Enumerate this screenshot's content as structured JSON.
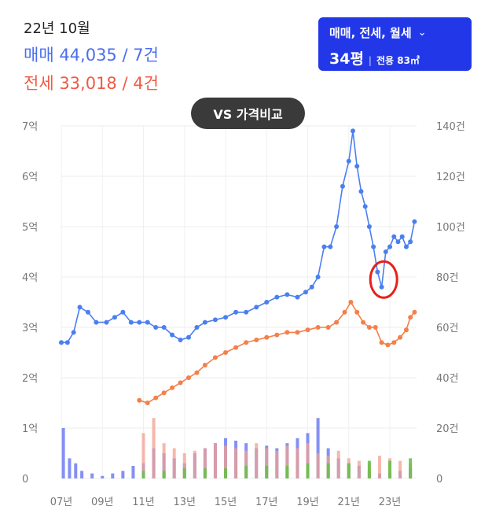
{
  "header": {
    "date": "22년 10월",
    "sale_line": "매매 44,035 / 7건",
    "jeonse_line": "전세 33,018 / 4건"
  },
  "filter": {
    "types": "매매, 전세, 월세",
    "size_main": "34평",
    "size_sub": "전용 83㎡"
  },
  "vs_button": "VS 가격비교",
  "colors": {
    "sale": "#4a7ff0",
    "jeonse": "#f4804a",
    "volume_sale": "#6f7df2",
    "volume_jeonse": "#f2a090",
    "volume_rent": "#6cbf4a",
    "highlight": "#e8201a"
  },
  "chart_data": {
    "type": "line",
    "title": "",
    "x_range": [
      2007,
      2024.3
    ],
    "xtick_labels": [
      "07년",
      "09년",
      "11년",
      "13년",
      "15년",
      "17년",
      "19년",
      "21년",
      "23년"
    ],
    "y_left_range": [
      0,
      7
    ],
    "y_left_unit": "억",
    "y_left_ticks": [
      "0",
      "1억",
      "2억",
      "3억",
      "4억",
      "5억",
      "6억",
      "7억"
    ],
    "y_right_range": [
      0,
      140
    ],
    "y_right_ticks": [
      "0",
      "20건",
      "40건",
      "60건",
      "80건",
      "100건",
      "120건",
      "140건"
    ],
    "grid": true,
    "series": [
      {
        "name": "매매",
        "axis": "left",
        "x": [
          2007.0,
          2007.3,
          2007.6,
          2007.9,
          2008.3,
          2008.7,
          2009.2,
          2009.6,
          2010.0,
          2010.4,
          2010.8,
          2011.2,
          2011.6,
          2012.0,
          2012.4,
          2012.8,
          2013.2,
          2013.6,
          2014.0,
          2014.5,
          2015.0,
          2015.5,
          2016.0,
          2016.5,
          2017.0,
          2017.5,
          2018.0,
          2018.5,
          2018.9,
          2019.2,
          2019.5,
          2019.8,
          2020.1,
          2020.4,
          2020.7,
          2021.0,
          2021.2,
          2021.4,
          2021.6,
          2021.8,
          2022.0,
          2022.2,
          2022.4,
          2022.6,
          2022.8,
          2023.0,
          2023.2,
          2023.4,
          2023.6,
          2023.8,
          2024.0,
          2024.2
        ],
        "y": [
          2.7,
          2.7,
          2.9,
          3.4,
          3.3,
          3.1,
          3.1,
          3.2,
          3.3,
          3.1,
          3.1,
          3.1,
          3.0,
          3.0,
          2.85,
          2.75,
          2.8,
          3.0,
          3.1,
          3.15,
          3.2,
          3.3,
          3.3,
          3.4,
          3.5,
          3.6,
          3.65,
          3.6,
          3.7,
          3.8,
          4.0,
          4.6,
          4.6,
          5.0,
          5.8,
          6.3,
          6.9,
          6.2,
          5.7,
          5.4,
          5.0,
          4.6,
          4.1,
          3.8,
          4.5,
          4.6,
          4.8,
          4.7,
          4.8,
          4.6,
          4.7,
          5.1
        ]
      },
      {
        "name": "전세",
        "axis": "left",
        "x": [
          2010.8,
          2011.2,
          2011.6,
          2012.0,
          2012.4,
          2012.8,
          2013.2,
          2013.6,
          2014.0,
          2014.5,
          2015.0,
          2015.5,
          2016.0,
          2016.5,
          2017.0,
          2017.5,
          2018.0,
          2018.5,
          2019.0,
          2019.5,
          2020.0,
          2020.4,
          2020.8,
          2021.1,
          2021.4,
          2021.7,
          2022.0,
          2022.3,
          2022.6,
          2022.9,
          2023.2,
          2023.5,
          2023.8,
          2024.0,
          2024.2
        ],
        "y": [
          1.55,
          1.5,
          1.6,
          1.7,
          1.8,
          1.9,
          2.0,
          2.1,
          2.25,
          2.4,
          2.5,
          2.6,
          2.7,
          2.75,
          2.8,
          2.85,
          2.9,
          2.9,
          2.95,
          3.0,
          3.0,
          3.1,
          3.3,
          3.5,
          3.3,
          3.1,
          3.0,
          3.0,
          2.7,
          2.65,
          2.7,
          2.8,
          2.95,
          3.2,
          3.3
        ]
      }
    ],
    "volume_series": [
      {
        "name": "매매 거래량",
        "axis": "right",
        "x": [
          2007.1,
          2007.4,
          2007.7,
          2008.0,
          2008.5,
          2009.0,
          2009.5,
          2010.0,
          2010.5,
          2011.0,
          2011.5,
          2012.0,
          2012.5,
          2013.0,
          2013.5,
          2014.0,
          2014.5,
          2015.0,
          2015.5,
          2016.0,
          2016.5,
          2017.0,
          2017.5,
          2018.0,
          2018.5,
          2019.0,
          2019.5,
          2020.0,
          2020.5,
          2021.0,
          2021.5,
          2022.0,
          2022.5,
          2023.0,
          2023.5,
          2024.0
        ],
        "y": [
          20,
          8,
          6,
          3,
          2,
          1,
          2,
          3,
          5,
          6,
          12,
          10,
          8,
          6,
          10,
          12,
          14,
          16,
          15,
          14,
          12,
          13,
          12,
          14,
          16,
          18,
          24,
          12,
          8,
          6,
          5,
          3,
          2,
          2,
          3,
          4
        ]
      },
      {
        "name": "전세 거래량",
        "axis": "right",
        "x": [
          2011.0,
          2011.5,
          2012.0,
          2012.5,
          2013.0,
          2013.5,
          2014.0,
          2014.5,
          2015.0,
          2015.5,
          2016.0,
          2016.5,
          2017.0,
          2017.5,
          2018.0,
          2018.5,
          2019.0,
          2019.5,
          2020.0,
          2020.5,
          2021.0,
          2021.5,
          2022.0,
          2022.5,
          2023.0,
          2023.5,
          2024.0
        ],
        "y": [
          18,
          24,
          14,
          12,
          10,
          11,
          12,
          14,
          13,
          12,
          11,
          14,
          12,
          11,
          13,
          12,
          14,
          10,
          9,
          11,
          8,
          7,
          6,
          9,
          8,
          7,
          6
        ]
      },
      {
        "name": "월세 거래량",
        "axis": "right",
        "x": [
          2011.0,
          2012.0,
          2013.0,
          2014.0,
          2015.0,
          2016.0,
          2017.0,
          2018.0,
          2019.0,
          2020.0,
          2021.0,
          2022.0,
          2023.0,
          2024.0
        ],
        "y": [
          3,
          3,
          4,
          4,
          4,
          5,
          5,
          5,
          6,
          6,
          6,
          7,
          7,
          8
        ]
      }
    ],
    "highlight": {
      "x": 2022.7,
      "y": 3.95
    }
  }
}
